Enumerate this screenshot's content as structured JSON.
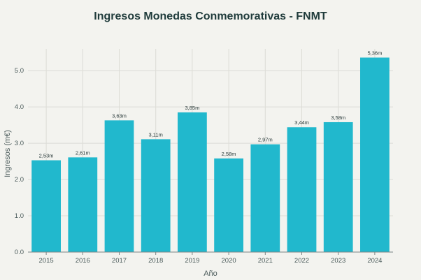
{
  "chart_data": {
    "type": "bar",
    "title": "Ingresos Monedas Conmemorativas - FNMT",
    "xlabel": "Año",
    "ylabel": "Ingresos (m€)",
    "categories": [
      "2015",
      "2016",
      "2017",
      "2018",
      "2019",
      "2020",
      "2021",
      "2022",
      "2023",
      "2024"
    ],
    "values": [
      2.53,
      2.61,
      3.63,
      3.11,
      3.85,
      2.58,
      2.97,
      3.44,
      3.58,
      5.36
    ],
    "data_labels": [
      "2,53m",
      "2,61m",
      "3,63m",
      "3,11m",
      "3,85m",
      "2,58m",
      "2,97m",
      "3,44m",
      "3,58m",
      "5,36m"
    ],
    "yticks": [
      "0.0",
      "1.0",
      "2.0",
      "3.0",
      "4.0",
      "5.0"
    ],
    "ylim": [
      0,
      5.6
    ],
    "grid": true,
    "bar_color": "#21b8cd",
    "background": "#f3f3ef"
  }
}
